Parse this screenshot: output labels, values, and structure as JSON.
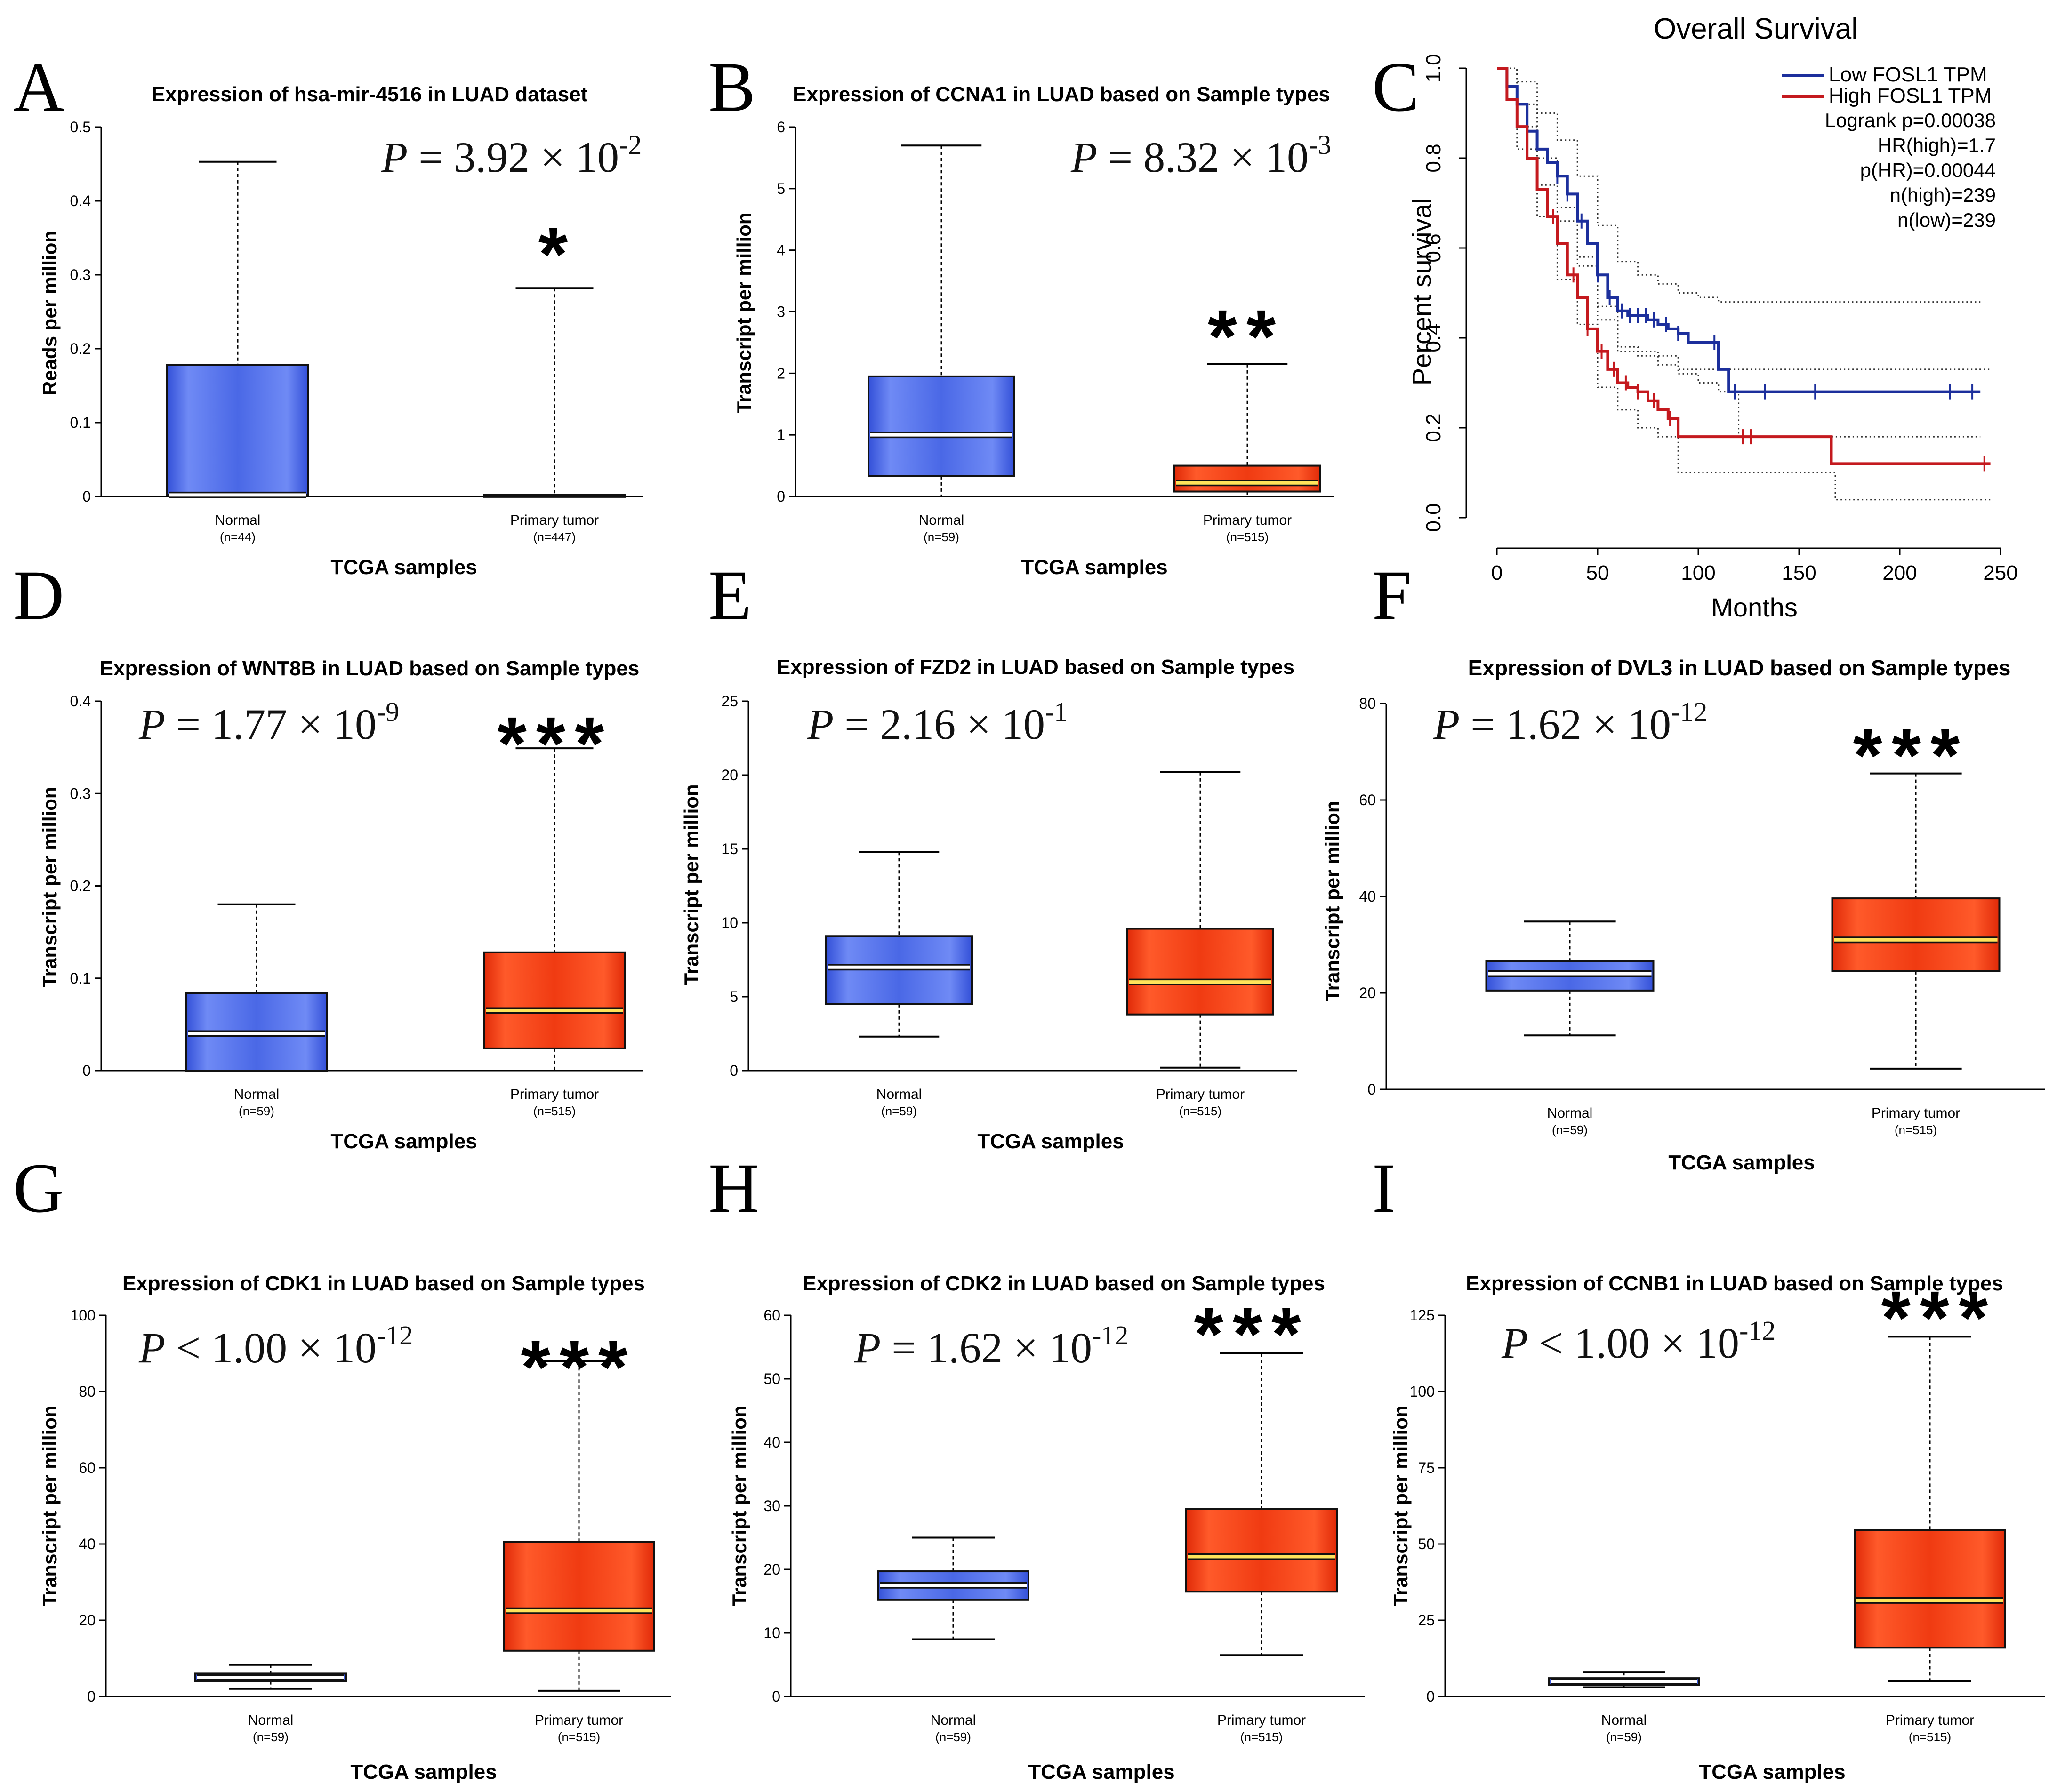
{
  "chart_data": [
    {
      "id": "A",
      "type": "boxplot",
      "letter": "A",
      "title": "Expression of hsa-mir-4516 in LUAD dataset",
      "ylabel": "Reads per million",
      "xlabel": "TCGA samples",
      "ylim": [
        0,
        0.5
      ],
      "yticks": [
        "0",
        "0.1",
        "0.2",
        "0.3",
        "0.4",
        "0.5"
      ],
      "pvalue": {
        "prefix": "= 3.92 × 10",
        "exp": "-2"
      },
      "star": "*",
      "groups": [
        {
          "name": "Normal",
          "n": "(n=44)",
          "color": "#4a68e6",
          "min": 0,
          "q1": 0.002,
          "median": 0.002,
          "q3": 0.178,
          "max": 0.453
        },
        {
          "name": "Primary tumor",
          "n": "(n=447)",
          "color": "#4a68e6",
          "min": 0,
          "q1": 0,
          "median": 0,
          "q3": 0.002,
          "max": 0.282
        }
      ]
    },
    {
      "id": "B",
      "type": "boxplot",
      "letter": "B",
      "title": "Expression of CCNA1 in LUAD based on Sample types",
      "ylabel": "Transcript per million",
      "xlabel": "TCGA samples",
      "ylim": [
        0,
        6
      ],
      "yticks": [
        "0",
        "1",
        "2",
        "3",
        "4",
        "5",
        "6"
      ],
      "pvalue": {
        "prefix": "= 8.32 × 10",
        "exp": "-3"
      },
      "star": "**",
      "groups": [
        {
          "name": "Normal",
          "n": "(n=59)",
          "color": "#4a68e6",
          "min": 0,
          "q1": 0.33,
          "median": 1.0,
          "q3": 1.95,
          "max": 5.7
        },
        {
          "name": "Primary tumor",
          "n": "(n=515)",
          "color": "#f03b12",
          "min": 0,
          "q1": 0.08,
          "median": 0.22,
          "q3": 0.5,
          "max": 2.15
        }
      ]
    },
    {
      "id": "C",
      "type": "line",
      "letter": "C",
      "title": "Overall Survival",
      "xlabel": "Months",
      "ylabel": "Percent survival",
      "xlim": [
        0,
        250
      ],
      "ylim": [
        0,
        1
      ],
      "xticks": [
        "0",
        "50",
        "100",
        "150",
        "200",
        "250"
      ],
      "yticks": [
        "0.0",
        "0.2",
        "0.4",
        "0.6",
        "0.8",
        "1.0"
      ],
      "legend": [
        "Low FOSL1 TPM",
        "High FOSL1 TPM"
      ],
      "stats": [
        "Logrank p=0.00038",
        "HR(high)=1.7",
        "p(HR)=0.00044",
        "n(high)=239",
        "n(low)=239"
      ],
      "series": [
        {
          "name": "Low FOSL1 TPM",
          "color": "#1c2f9c",
          "x": [
            0,
            5,
            10,
            15,
            20,
            25,
            30,
            35,
            40,
            45,
            50,
            55,
            60,
            65,
            70,
            75,
            80,
            85,
            90,
            95,
            100,
            105,
            110,
            115,
            120,
            140,
            160,
            180,
            200,
            220,
            240
          ],
          "y": [
            1.0,
            0.96,
            0.92,
            0.86,
            0.82,
            0.79,
            0.76,
            0.72,
            0.66,
            0.61,
            0.54,
            0.49,
            0.46,
            0.45,
            0.45,
            0.44,
            0.43,
            0.42,
            0.41,
            0.39,
            0.39,
            0.39,
            0.33,
            0.28,
            0.28,
            0.28,
            0.28,
            0.28,
            0.28,
            0.28,
            0.28
          ]
        },
        {
          "name": "High FOSL1 TPM",
          "color": "#c4191e",
          "x": [
            0,
            5,
            10,
            15,
            20,
            25,
            30,
            35,
            40,
            45,
            50,
            55,
            60,
            65,
            70,
            75,
            80,
            85,
            90,
            100,
            120,
            140,
            160,
            166,
            180,
            200,
            220,
            245
          ],
          "y": [
            1.0,
            0.93,
            0.87,
            0.8,
            0.73,
            0.67,
            0.61,
            0.54,
            0.49,
            0.42,
            0.37,
            0.33,
            0.3,
            0.29,
            0.28,
            0.26,
            0.24,
            0.22,
            0.18,
            0.18,
            0.18,
            0.18,
            0.18,
            0.12,
            0.12,
            0.12,
            0.12,
            0.12
          ]
        }
      ],
      "ci": [
        {
          "x": [
            0,
            10,
            20,
            30,
            40,
            50,
            60,
            70,
            80,
            90,
            100,
            110,
            120,
            150,
            200,
            240
          ],
          "y": [
            1.0,
            0.97,
            0.9,
            0.84,
            0.76,
            0.65,
            0.57,
            0.54,
            0.52,
            0.5,
            0.49,
            0.48,
            0.48,
            0.48,
            0.48,
            0.48
          ]
        },
        {
          "x": [
            0,
            10,
            20,
            30,
            40,
            50,
            60,
            70,
            80,
            90,
            100,
            110,
            120,
            150,
            200,
            240
          ],
          "y": [
            1.0,
            0.87,
            0.74,
            0.66,
            0.56,
            0.44,
            0.37,
            0.36,
            0.34,
            0.32,
            0.3,
            0.28,
            0.18,
            0.18,
            0.18,
            0.18
          ]
        },
        {
          "x": [
            0,
            10,
            20,
            30,
            40,
            50,
            60,
            70,
            80,
            90,
            100,
            130,
            170,
            200,
            245
          ],
          "y": [
            1.0,
            0.92,
            0.8,
            0.69,
            0.58,
            0.47,
            0.38,
            0.37,
            0.36,
            0.33,
            0.33,
            0.33,
            0.33,
            0.33,
            0.33
          ]
        },
        {
          "x": [
            0,
            10,
            20,
            30,
            40,
            50,
            60,
            70,
            80,
            90,
            100,
            130,
            165,
            168,
            200,
            245
          ],
          "y": [
            1.0,
            0.82,
            0.67,
            0.53,
            0.43,
            0.29,
            0.24,
            0.2,
            0.18,
            0.1,
            0.1,
            0.1,
            0.1,
            0.04,
            0.04,
            0.04
          ]
        }
      ],
      "censor_low": [
        30,
        35,
        42,
        50,
        56,
        62,
        66,
        70,
        74,
        78,
        84,
        90,
        108,
        118,
        133,
        158,
        225,
        236
      ],
      "censor_high": [
        28,
        38,
        45,
        52,
        58,
        64,
        70,
        78,
        86,
        122,
        126,
        242
      ]
    },
    {
      "id": "D",
      "type": "boxplot",
      "letter": "D",
      "title": "Expression of WNT8B in LUAD based on Sample types",
      "ylabel": "Transcript per million",
      "xlabel": "TCGA samples",
      "ylim": [
        0,
        0.4
      ],
      "yticks": [
        "0",
        "0.1",
        "0.2",
        "0.3",
        "0.4"
      ],
      "pvalue": {
        "prefix": "= 1.77 × 10",
        "exp": "-9"
      },
      "star": "***",
      "groups": [
        {
          "name": "Normal",
          "n": "(n=59)",
          "color": "#4a68e6",
          "min": 0,
          "q1": 0.0,
          "median": 0.04,
          "q3": 0.084,
          "max": 0.18
        },
        {
          "name": "Primary tumor",
          "n": "(n=515)",
          "color": "#f03b12",
          "min": 0,
          "q1": 0.024,
          "median": 0.065,
          "q3": 0.128,
          "max": 0.349
        }
      ]
    },
    {
      "id": "E",
      "type": "boxplot",
      "letter": "E",
      "title": "Expression of FZD2 in LUAD based on Sample types",
      "ylabel": "Transcript per million",
      "xlabel": "TCGA samples",
      "ylim": [
        0,
        25
      ],
      "yticks": [
        "0",
        "5",
        "10",
        "15",
        "20",
        "25"
      ],
      "pvalue": {
        "prefix": "= 2.16 × 10",
        "exp": "-1"
      },
      "star": "",
      "groups": [
        {
          "name": "Normal",
          "n": "(n=59)",
          "color": "#4a68e6",
          "min": 2.3,
          "q1": 4.5,
          "median": 7.0,
          "q3": 9.1,
          "max": 14.8
        },
        {
          "name": "Primary tumor",
          "n": "(n=515)",
          "color": "#f03b12",
          "min": 0.2,
          "q1": 3.8,
          "median": 6.0,
          "q3": 9.6,
          "max": 20.2
        }
      ]
    },
    {
      "id": "F",
      "type": "boxplot",
      "letter": "F",
      "title": "Expression of DVL3 in LUAD based on Sample types",
      "ylabel": "Transcript per million",
      "xlabel": "TCGA samples",
      "ylim": [
        0,
        80
      ],
      "yticks": [
        "0",
        "20",
        "40",
        "60",
        "80"
      ],
      "pvalue": {
        "prefix": "= 1.62 × 10",
        "exp": "-12"
      },
      "star": "***",
      "groups": [
        {
          "name": "Normal",
          "n": "(n=59)",
          "color": "#4a68e6",
          "min": 11.2,
          "q1": 20.5,
          "median": 24.0,
          "q3": 26.6,
          "max": 34.8
        },
        {
          "name": "Primary tumor",
          "n": "(n=515)",
          "color": "#f03b12",
          "min": 4.3,
          "q1": 24.5,
          "median": 31.0,
          "q3": 39.6,
          "max": 65.5
        }
      ]
    },
    {
      "id": "G",
      "type": "boxplot",
      "letter": "G",
      "title": "Expression of CDK1 in LUAD based on Sample types",
      "ylabel": "Transcript per million",
      "xlabel": "TCGA samples",
      "ylim": [
        0,
        100
      ],
      "yticks": [
        "0",
        "20",
        "40",
        "60",
        "80",
        "100"
      ],
      "pvalue": {
        "prefix": "< 1.00 × 10",
        "exp": "-12"
      },
      "star": "***",
      "groups": [
        {
          "name": "Normal",
          "n": "(n=59)",
          "color": "#4a68e6",
          "min": 2.0,
          "q1": 4.0,
          "median": 5.0,
          "q3": 6.0,
          "max": 8.3
        },
        {
          "name": "Primary tumor",
          "n": "(n=515)",
          "color": "#f03b12",
          "min": 1.5,
          "q1": 12.0,
          "median": 22.5,
          "q3": 40.5,
          "max": 88.0
        }
      ]
    },
    {
      "id": "H",
      "type": "boxplot",
      "letter": "H",
      "title": "Expression of CDK2 in LUAD based on Sample types",
      "ylabel": "Transcript per million",
      "xlabel": "TCGA samples",
      "ylim": [
        0,
        60
      ],
      "yticks": [
        "0",
        "10",
        "20",
        "30",
        "40",
        "50",
        "60"
      ],
      "pvalue": {
        "prefix": "= 1.62 × 10",
        "exp": "-12"
      },
      "star": "***",
      "groups": [
        {
          "name": "Normal",
          "n": "(n=59)",
          "color": "#4a68e6",
          "min": 9.0,
          "q1": 15.2,
          "median": 17.5,
          "q3": 19.7,
          "max": 25.0
        },
        {
          "name": "Primary tumor",
          "n": "(n=515)",
          "color": "#f03b12",
          "min": 6.5,
          "q1": 16.5,
          "median": 22.0,
          "q3": 29.5,
          "max": 54.0
        }
      ]
    },
    {
      "id": "I",
      "type": "boxplot",
      "letter": "I",
      "title": "Expression of CCNB1 in LUAD based on Sample types",
      "ylabel": "Transcript per million",
      "xlabel": "TCGA samples",
      "ylim": [
        0,
        125
      ],
      "yticks": [
        "0",
        "25",
        "50",
        "75",
        "100",
        "125"
      ],
      "pvalue": {
        "prefix": "< 1.00  × 10",
        "exp": "-12"
      },
      "star": "***",
      "groups": [
        {
          "name": "Normal",
          "n": "(n=59)",
          "color": "#4a68e6",
          "min": 3.0,
          "q1": 3.8,
          "median": 5.0,
          "q3": 6.0,
          "max": 8.0
        },
        {
          "name": "Primary tumor",
          "n": "(n=515)",
          "color": "#f03b12",
          "min": 5.0,
          "q1": 16.0,
          "median": 31.5,
          "q3": 54.5,
          "max": 118.0
        }
      ]
    }
  ]
}
